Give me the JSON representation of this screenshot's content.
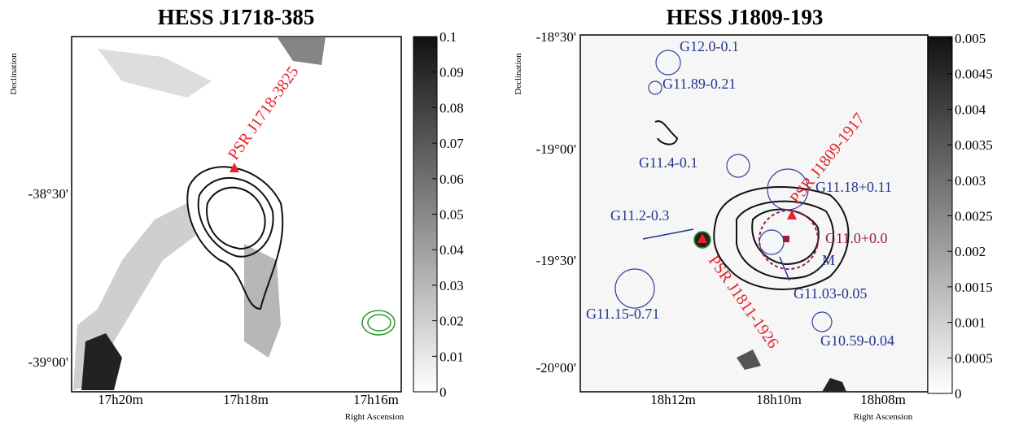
{
  "panels": [
    {
      "title": "HESS J1718-385",
      "y_axis_label": "Declination",
      "x_axis_label": "Right Ascension",
      "y_ticks": [
        "-38°30'",
        "-39°00'"
      ],
      "x_ticks": [
        "17h20m",
        "17h18m",
        "17h16m"
      ],
      "colorbar_ticks": [
        "0.1",
        "0.09",
        "0.08",
        "0.07",
        "0.06",
        "0.05",
        "0.04",
        "0.03",
        "0.02",
        "0.01",
        "0"
      ],
      "annotations": [
        "PSR J1718-3825"
      ]
    },
    {
      "title": "HESS J1809-193",
      "y_axis_label": "Declination",
      "x_axis_label": "Right Ascension",
      "y_ticks": [
        "-18°30'",
        "-19°00'",
        "-19°30'",
        "-20°00'"
      ],
      "x_ticks": [
        "18h12m",
        "18h10m",
        "18h08m"
      ],
      "colorbar_ticks": [
        "0.005",
        "0.0045",
        "0.004",
        "0.0035",
        "0.003",
        "0.0025",
        "0.002",
        "0.0015",
        "0.001",
        "0.0005",
        "0"
      ],
      "annotations": [
        "G12.0-0.1",
        "G11.89-0.21",
        "G11.4-0.1",
        "G11.18+0.11",
        "G11.2-0.3",
        "G11.0+0.0",
        "M",
        "G11.03-0.05",
        "G11.15-0.71",
        "G10.59-0.04",
        "PSR J1809-1917",
        "PSR J1811-1926"
      ]
    }
  ]
}
